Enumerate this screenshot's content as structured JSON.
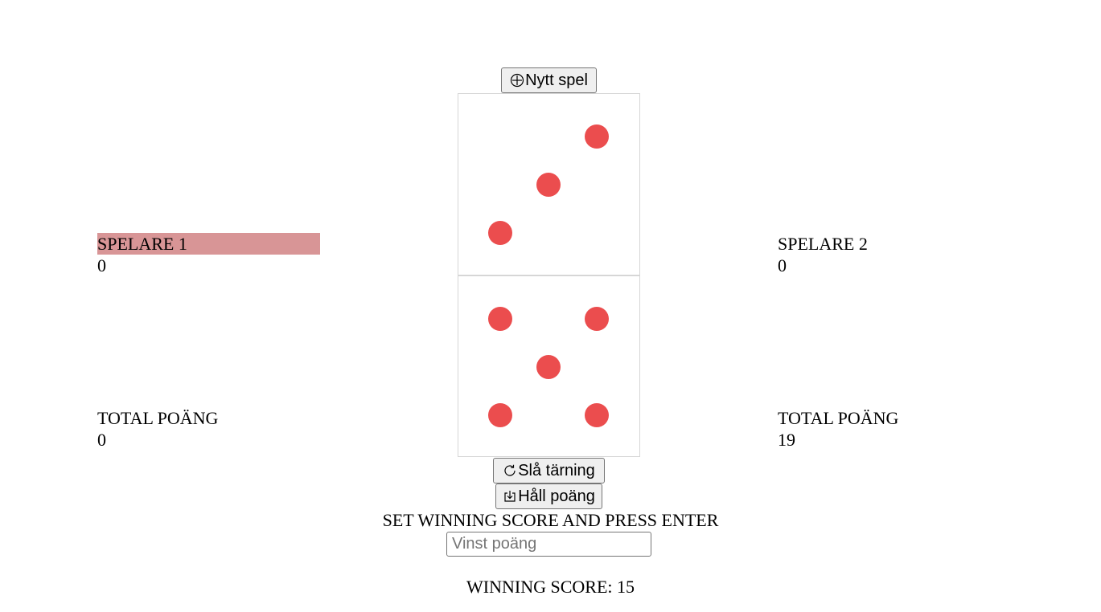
{
  "buttons": {
    "new_game": "Nytt spel",
    "roll": "Slå tärning",
    "hold": "Håll poäng"
  },
  "icons": {
    "new_game": "plus-circle-icon",
    "roll": "refresh-icon",
    "hold": "download-box-icon"
  },
  "colors": {
    "pip": "#eb4d4e",
    "active_player_highlight": "#d89596"
  },
  "dice": [
    3,
    5
  ],
  "player1": {
    "name": "SPELARE 1",
    "round_score": "0",
    "total_label": "TOTAL POÄNG",
    "total_score": "0",
    "active": true
  },
  "player2": {
    "name": "SPELARE 2",
    "round_score": "0",
    "total_label": "TOTAL POÄNG",
    "total_score": "19",
    "active": false
  },
  "winning_score_form": {
    "label": "SET WINNING SCORE AND PRESS ENTER",
    "placeholder": "Vinst poäng",
    "value": ""
  },
  "winning_score_text": "WINNING SCORE: 15"
}
